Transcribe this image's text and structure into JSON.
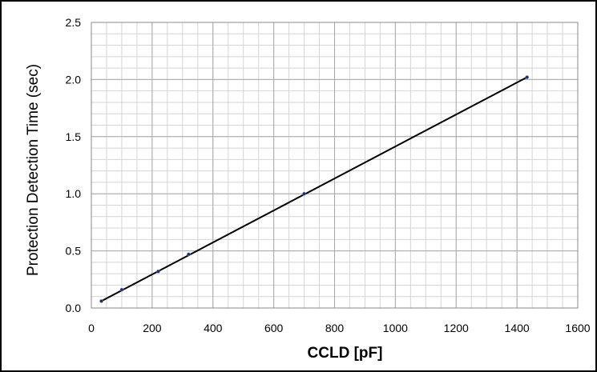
{
  "chart_data": {
    "type": "scatter",
    "title": "",
    "xlabel": "CCLD [pF]",
    "ylabel": "Protection Detection Time (sec)",
    "xlim": [
      0,
      1600
    ],
    "ylim": [
      0,
      2.5
    ],
    "x_ticks": [
      "0",
      "200",
      "400",
      "600",
      "800",
      "1000",
      "1200",
      "1400",
      "1600"
    ],
    "y_ticks": [
      "0.0",
      "0.5",
      "1.0",
      "1.5",
      "2.0",
      "2.5"
    ],
    "x_tick_values": [
      0,
      200,
      400,
      600,
      800,
      1000,
      1200,
      1400,
      1600
    ],
    "y_tick_values": [
      0,
      0.5,
      1.0,
      1.5,
      2.0,
      2.5
    ],
    "x_minor_step": 50,
    "y_minor_step": 0.1,
    "grid": true,
    "legend": "none",
    "series": [
      {
        "points": [
          {
            "x": 33,
            "y": 0.06
          },
          {
            "x": 100,
            "y": 0.16
          },
          {
            "x": 220,
            "y": 0.32
          },
          {
            "x": 320,
            "y": 0.47
          },
          {
            "x": 700,
            "y": 1.0
          },
          {
            "x": 1433,
            "y": 2.02
          }
        ],
        "marker_color": "#1f2a6b",
        "trendline": {
          "from": {
            "x": 33,
            "y": 0.06
          },
          "to": {
            "x": 1433,
            "y": 2.02
          },
          "color": "#000000"
        }
      }
    ]
  }
}
